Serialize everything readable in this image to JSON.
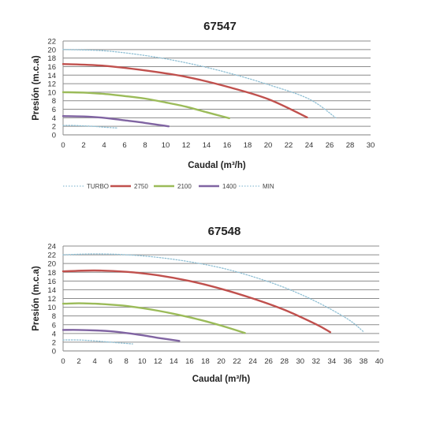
{
  "chart_data": [
    {
      "type": "line",
      "title": "67547",
      "xlabel": "Caudal (m³/h)",
      "ylabel": "Presión (m.c.a)",
      "xlim": [
        0,
        30
      ],
      "ylim": [
        0,
        22
      ],
      "xticks": [
        "0",
        "2",
        "4",
        "6",
        "8",
        "10",
        "12",
        "14",
        "16",
        "18",
        "20",
        "22",
        "24",
        "26",
        "28",
        "30"
      ],
      "yticks": [
        "0",
        "2",
        "4",
        "6",
        "8",
        "10",
        "12",
        "14",
        "16",
        "18",
        "20",
        "22"
      ],
      "grid": "horizontal",
      "legend": "bottom",
      "series": [
        {
          "name": "TURBO",
          "color": "#8fbfd4",
          "dashed": true,
          "x": [
            0,
            4,
            8,
            12,
            16,
            20,
            24,
            26.6
          ],
          "y": [
            20.0,
            19.7,
            18.6,
            16.9,
            14.6,
            11.8,
            8.4,
            4.0
          ]
        },
        {
          "name": "2750",
          "color": "#c0504d",
          "dashed": false,
          "x": [
            0,
            4,
            8,
            12,
            16,
            20,
            23.8
          ],
          "y": [
            16.6,
            16.2,
            15.1,
            13.6,
            11.3,
            8.4,
            4.1
          ]
        },
        {
          "name": "2100",
          "color": "#9bbb59",
          "dashed": false,
          "x": [
            0,
            2,
            4,
            6,
            8,
            10,
            12,
            14,
            16.2
          ],
          "y": [
            10.0,
            9.9,
            9.6,
            9.1,
            8.5,
            7.6,
            6.6,
            5.3,
            3.9
          ]
        },
        {
          "name": "1400",
          "color": "#8064a2",
          "dashed": false,
          "x": [
            0,
            2,
            4,
            6,
            8,
            10.3
          ],
          "y": [
            4.4,
            4.3,
            4.0,
            3.4,
            2.8,
            2.0
          ]
        },
        {
          "name": "MIN",
          "color": "#8fbfd4",
          "dashed": true,
          "x": [
            0,
            1,
            2,
            3,
            4,
            5.3
          ],
          "y": [
            2.2,
            2.2,
            2.1,
            2.0,
            1.8,
            1.6
          ]
        }
      ]
    },
    {
      "type": "line",
      "title": "67548",
      "xlabel": "Caudal (m³/h)",
      "ylabel": "Presión (m.c.a)",
      "xlim": [
        0,
        40
      ],
      "ylim": [
        0,
        24
      ],
      "xticks": [
        "0",
        "2",
        "4",
        "6",
        "8",
        "10",
        "12",
        "14",
        "16",
        "18",
        "20",
        "22",
        "24",
        "26",
        "28",
        "30",
        "32",
        "34",
        "36",
        "38",
        "40"
      ],
      "yticks": [
        "0",
        "2",
        "4",
        "6",
        "8",
        "10",
        "12",
        "14",
        "16",
        "18",
        "20",
        "22",
        "24"
      ],
      "grid": "horizontal",
      "series": [
        {
          "name": "TURBO",
          "color": "#8fbfd4",
          "dashed": true,
          "x": [
            0,
            4,
            8,
            12,
            16,
            20,
            24,
            28,
            32,
            36,
            38
          ],
          "y": [
            22.0,
            22.2,
            22.0,
            21.4,
            20.4,
            19.0,
            17.0,
            14.5,
            11.3,
            7.3,
            4.4
          ]
        },
        {
          "name": "2750",
          "color": "#c0504d",
          "dashed": false,
          "x": [
            0,
            4,
            8,
            12,
            16,
            20,
            24,
            28,
            32,
            33.8
          ],
          "y": [
            18.2,
            18.4,
            18.1,
            17.3,
            16.0,
            14.2,
            12.0,
            9.4,
            6.1,
            4.3
          ]
        },
        {
          "name": "2100",
          "color": "#9bbb59",
          "dashed": false,
          "x": [
            0,
            2,
            4,
            6,
            8,
            10,
            12,
            14,
            16,
            18,
            20,
            23
          ],
          "y": [
            10.8,
            10.9,
            10.8,
            10.6,
            10.3,
            9.8,
            9.2,
            8.5,
            7.7,
            6.8,
            5.8,
            4.1
          ]
        },
        {
          "name": "1400",
          "color": "#8064a2",
          "dashed": false,
          "x": [
            0,
            2,
            4,
            6,
            8,
            10,
            12,
            14.7
          ],
          "y": [
            4.8,
            4.8,
            4.7,
            4.5,
            4.1,
            3.6,
            3.0,
            2.3
          ]
        },
        {
          "name": "MIN",
          "color": "#8fbfd4",
          "dashed": true,
          "x": [
            0,
            2,
            4,
            6,
            8.8
          ],
          "y": [
            2.5,
            2.5,
            2.3,
            2.0,
            1.6
          ]
        }
      ]
    }
  ]
}
